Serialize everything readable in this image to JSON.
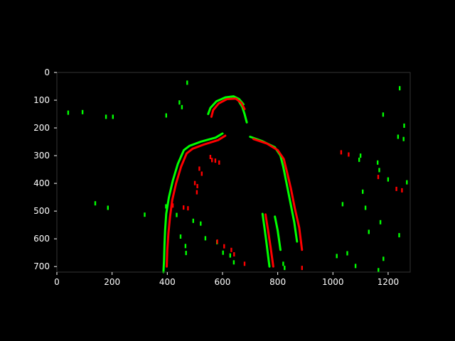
{
  "chart_data": {
    "type": "scatter",
    "title": "",
    "xlabel": "",
    "ylabel": "",
    "xlim": [
      0,
      1280
    ],
    "ylim": [
      720,
      0
    ],
    "x_ticks": [
      0,
      200,
      400,
      600,
      800,
      1000,
      1200
    ],
    "x_tick_labels": [
      "0",
      "200",
      "400",
      "600",
      "800",
      "1000",
      "1200"
    ],
    "y_ticks": [
      0,
      100,
      200,
      300,
      400,
      500,
      600,
      700
    ],
    "y_tick_labels": [
      "0",
      "100",
      "200",
      "300",
      "400",
      "500",
      "600",
      "700"
    ],
    "grid": false,
    "legend": "none",
    "series": [
      {
        "color": "#00ff00",
        "outline_paths": [
          [
            [
              548,
              150
            ],
            [
              556,
              128
            ],
            [
              578,
              104
            ],
            [
              610,
              90
            ],
            [
              640,
              86
            ],
            [
              660,
              96
            ],
            [
              676,
              115
            ]
          ],
          [
            [
              600,
              220
            ],
            [
              575,
              235
            ],
            [
              520,
              250
            ],
            [
              480,
              265
            ],
            [
              460,
              280
            ],
            [
              438,
              330
            ],
            [
              420,
              390
            ],
            [
              406,
              450
            ],
            [
              396,
              510
            ],
            [
              392,
              570
            ],
            [
              390,
              620
            ],
            [
              388,
              680
            ],
            [
              386,
              720
            ]
          ],
          [
            [
              700,
              232
            ],
            [
              745,
              248
            ],
            [
              790,
              270
            ],
            [
              810,
              300
            ],
            [
              820,
              340
            ],
            [
              832,
              400
            ],
            [
              846,
              470
            ],
            [
              860,
              540
            ],
            [
              870,
              610
            ]
          ],
          [
            [
              660,
              105
            ],
            [
              672,
              125
            ],
            [
              680,
              150
            ],
            [
              688,
              180
            ]
          ],
          [
            [
              745,
              510
            ],
            [
              752,
              560
            ],
            [
              760,
              620
            ],
            [
              770,
              700
            ]
          ],
          [
            [
              790,
              520
            ],
            [
              800,
              570
            ],
            [
              810,
              640
            ]
          ]
        ],
        "points": [
          [
            472,
            37
          ],
          [
            1242,
            57
          ],
          [
            444,
            108
          ],
          [
            453,
            125
          ],
          [
            41,
            145
          ],
          [
            93,
            143
          ],
          [
            178,
            160
          ],
          [
            203,
            160
          ],
          [
            396,
            155
          ],
          [
            1182,
            152
          ],
          [
            1258,
            192
          ],
          [
            1236,
            232
          ],
          [
            1256,
            240
          ],
          [
            1100,
            300
          ],
          [
            1095,
            315
          ],
          [
            1162,
            325
          ],
          [
            1168,
            352
          ],
          [
            1200,
            386
          ],
          [
            1268,
            396
          ],
          [
            1108,
            430
          ],
          [
            1035,
            475
          ],
          [
            1118,
            488
          ],
          [
            1172,
            540
          ],
          [
            1130,
            575
          ],
          [
            1240,
            587
          ],
          [
            1052,
            652
          ],
          [
            1014,
            662
          ],
          [
            1183,
            672
          ],
          [
            1082,
            698
          ],
          [
            1165,
            713
          ],
          [
            139,
            472
          ],
          [
            185,
            488
          ],
          [
            318,
            513
          ],
          [
            395,
            483
          ],
          [
            434,
            514
          ],
          [
            494,
            535
          ],
          [
            521,
            545
          ],
          [
            448,
            592
          ],
          [
            466,
            626
          ],
          [
            468,
            651
          ],
          [
            538,
            598
          ],
          [
            580,
            612
          ],
          [
            602,
            650
          ],
          [
            628,
            660
          ],
          [
            641,
            685
          ],
          [
            820,
            690
          ],
          [
            825,
            705
          ]
        ]
      },
      {
        "color": "#ff0000",
        "outline_paths": [
          [
            [
              560,
              160
            ],
            [
              566,
              136
            ],
            [
              586,
              112
            ],
            [
              616,
              96
            ],
            [
              648,
              94
            ],
            [
              668,
              110
            ],
            [
              680,
              132
            ]
          ],
          [
            [
              610,
              228
            ],
            [
              584,
              244
            ],
            [
              532,
              260
            ],
            [
              492,
              275
            ],
            [
              470,
              292
            ],
            [
              450,
              340
            ],
            [
              432,
              400
            ],
            [
              418,
              460
            ],
            [
              410,
              520
            ],
            [
              404,
              580
            ],
            [
              400,
              640
            ],
            [
              398,
              700
            ]
          ],
          [
            [
              712,
              240
            ],
            [
              760,
              256
            ],
            [
              800,
              280
            ],
            [
              822,
              312
            ],
            [
              834,
              360
            ],
            [
              848,
              420
            ],
            [
              862,
              490
            ],
            [
              878,
              560
            ],
            [
              888,
              640
            ]
          ],
          [
            [
              756,
              512
            ],
            [
              764,
              562
            ],
            [
              774,
              628
            ],
            [
              784,
              700
            ]
          ]
        ],
        "points": [
          [
            556,
            305
          ],
          [
            562,
            316
          ],
          [
            574,
            318
          ],
          [
            588,
            325
          ],
          [
            516,
            347
          ],
          [
            525,
            365
          ],
          [
            500,
            399
          ],
          [
            509,
            410
          ],
          [
            507,
            432
          ],
          [
            420,
            480
          ],
          [
            459,
            487
          ],
          [
            475,
            490
          ],
          [
            581,
            610
          ],
          [
            606,
            627
          ],
          [
            632,
            640
          ],
          [
            642,
            656
          ],
          [
            680,
            690
          ],
          [
            888,
            705
          ],
          [
            1030,
            288
          ],
          [
            1057,
            296
          ],
          [
            1164,
            377
          ],
          [
            1230,
            420
          ],
          [
            1250,
            425
          ]
        ]
      }
    ]
  },
  "colors": {
    "background": "#000000",
    "axes_frame": "#333333",
    "tick_text": "#ffffff"
  }
}
